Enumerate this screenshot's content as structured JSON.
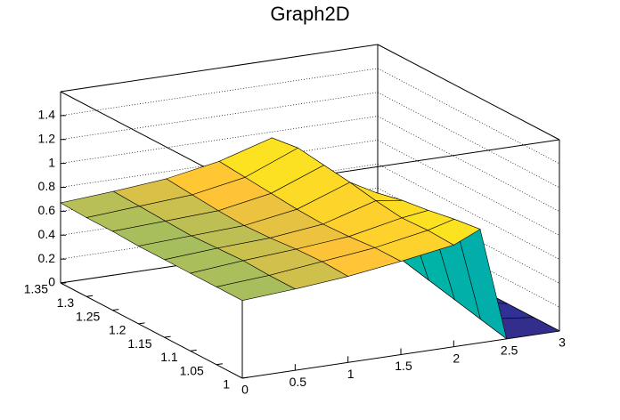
{
  "chart_data": {
    "type": "surface",
    "title": "Graph2D",
    "x": [
      0,
      0.5,
      1,
      1.5,
      2,
      2.25,
      2.5,
      3
    ],
    "y": [
      1,
      1.05,
      1.1,
      1.15,
      1.2,
      1.25,
      1.3,
      1.35
    ],
    "z": [
      [
        0.65,
        0.68,
        0.72,
        0.78,
        0.85,
        0.95,
        0,
        0
      ],
      [
        0.65,
        0.68,
        0.73,
        0.78,
        0.86,
        0.92,
        0.05,
        0
      ],
      [
        0.65,
        0.69,
        0.72,
        0.76,
        0.85,
        0.88,
        0.1,
        0
      ],
      [
        0.65,
        0.68,
        0.7,
        0.75,
        0.88,
        0.85,
        0.15,
        0
      ],
      [
        0.65,
        0.67,
        0.69,
        0.76,
        0.92,
        0.8,
        0.2,
        0
      ],
      [
        0.66,
        0.68,
        0.7,
        0.78,
        0.95,
        0.75,
        0.25,
        0
      ],
      [
        0.66,
        0.69,
        0.72,
        0.8,
        0.98,
        0.7,
        0.3,
        0
      ],
      [
        0.67,
        0.7,
        0.74,
        0.82,
        0.95,
        0.65,
        0.3,
        0
      ]
    ],
    "xlim": [
      0,
      3
    ],
    "ylim": [
      1,
      1.35
    ],
    "zlim": [
      0,
      1.6
    ],
    "xticks": [
      0,
      0.5,
      1,
      1.5,
      2,
      2.5,
      3
    ],
    "yticks": [
      1,
      1.05,
      1.1,
      1.15,
      1.2,
      1.25,
      1.3,
      1.35
    ],
    "zticks": [
      0,
      0.2,
      0.4,
      0.6,
      0.8,
      1,
      1.2,
      1.4
    ],
    "colormap": [
      "#352a87",
      "#0f5cdd",
      "#00b5a6",
      "#ffc337",
      "#f9fb0e"
    ],
    "grid": true
  }
}
